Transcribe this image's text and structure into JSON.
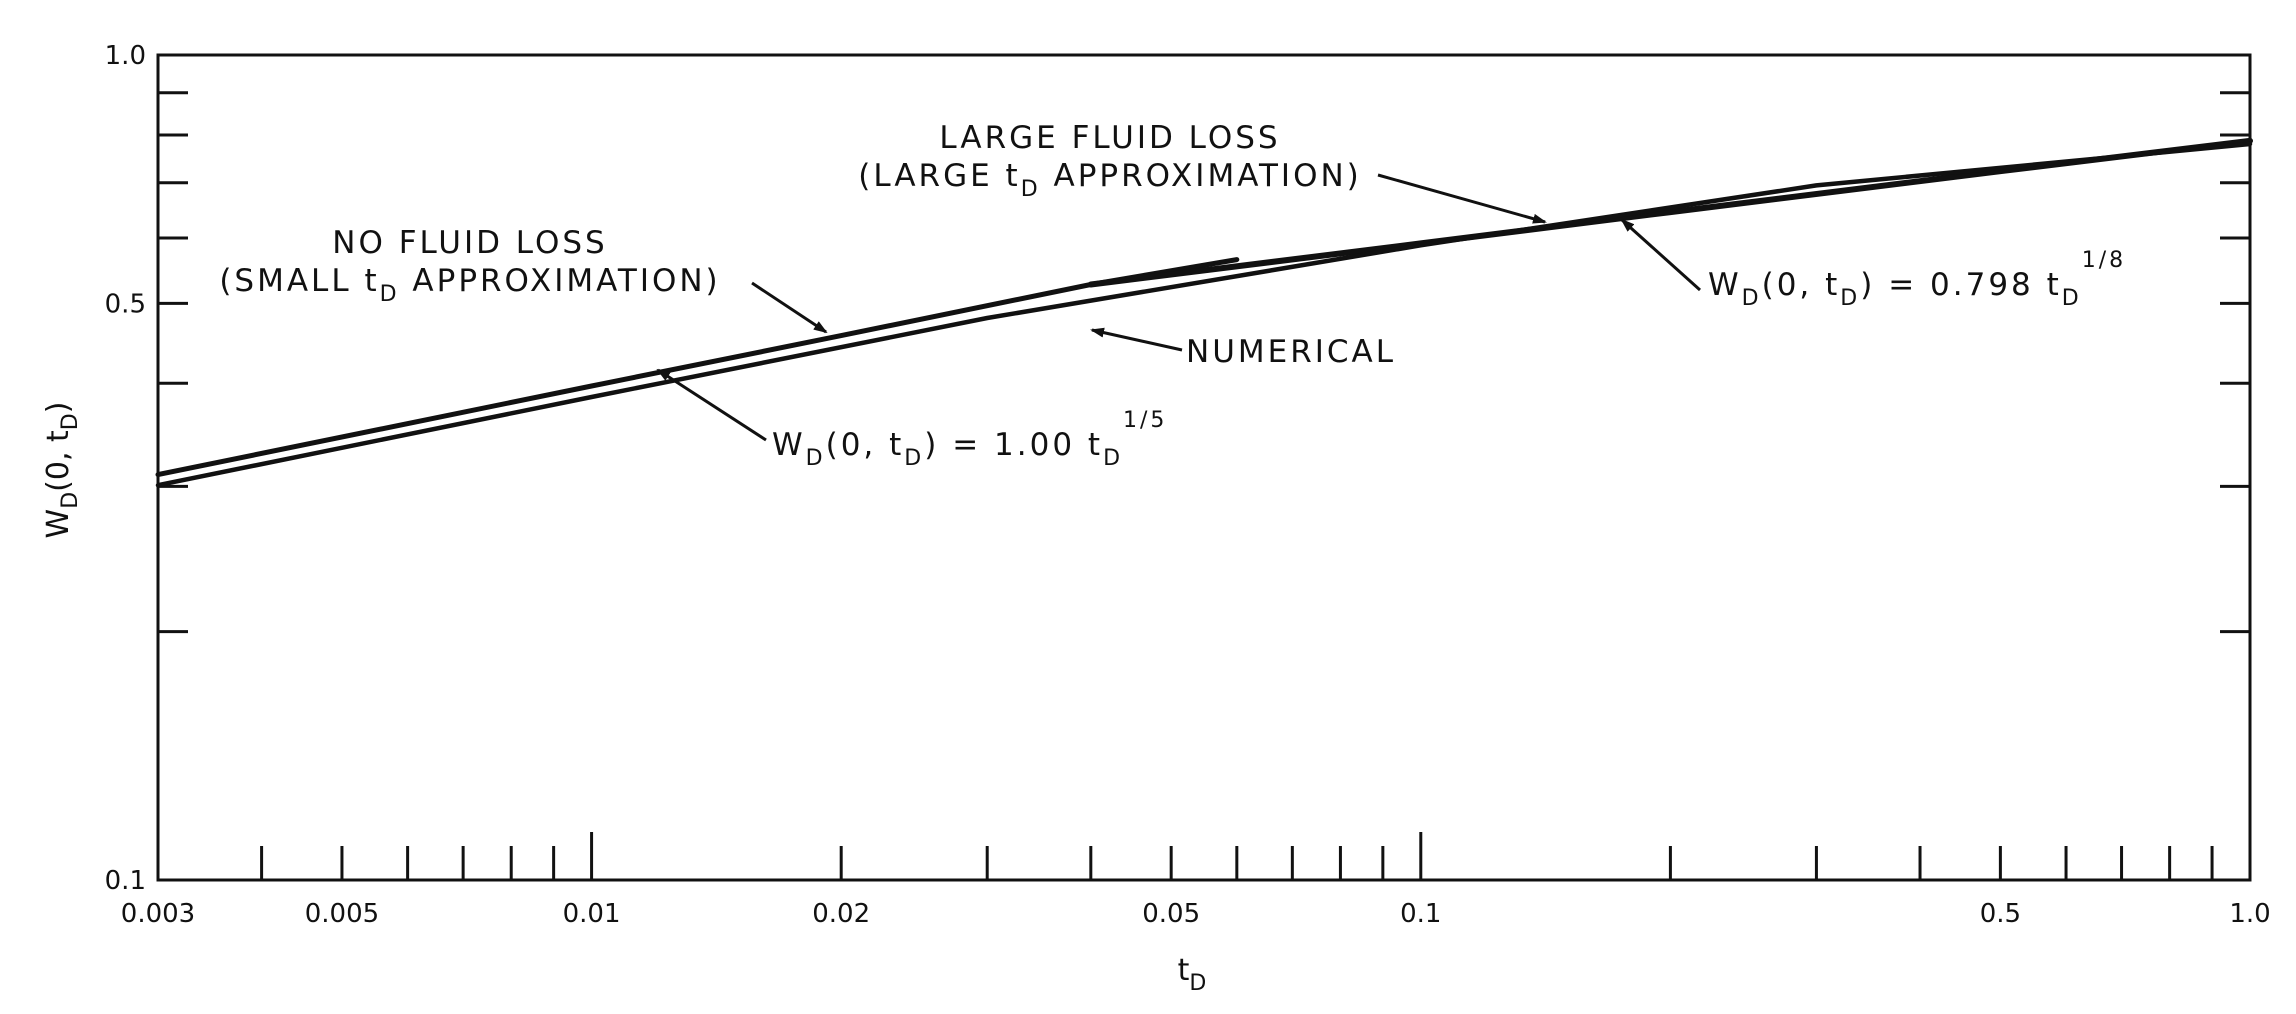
{
  "chart_data": {
    "type": "line",
    "x_scale": "log",
    "y_scale": "log",
    "xlim": [
      0.003,
      1.0
    ],
    "ylim": [
      0.1,
      1.0
    ],
    "grid": false,
    "xlabel": {
      "main": "t",
      "sub": "D"
    },
    "ylabel": {
      "main": "W",
      "sub": "D",
      "rest": "(0, t",
      "sub2": "D",
      "close": ")"
    },
    "x_tick_labels": [
      {
        "value": 0.003,
        "label": "0.003"
      },
      {
        "value": 0.005,
        "label": "0.005"
      },
      {
        "value": 0.01,
        "label": "0.01"
      },
      {
        "value": 0.02,
        "label": "0.02"
      },
      {
        "value": 0.05,
        "label": "0.05"
      },
      {
        "value": 0.1,
        "label": "0.1"
      },
      {
        "value": 0.5,
        "label": "0.5"
      },
      {
        "value": 1.0,
        "label": "1.0"
      }
    ],
    "y_tick_labels": [
      {
        "value": 1.0,
        "label": "1.0"
      },
      {
        "value": 0.5,
        "label": "0.5"
      },
      {
        "value": 0.1,
        "label": "0.1"
      }
    ],
    "x_minor_ticks": [
      0.004,
      0.005,
      0.006,
      0.007,
      0.008,
      0.009,
      0.01,
      0.02,
      0.03,
      0.04,
      0.05,
      0.06,
      0.07,
      0.08,
      0.09,
      0.1,
      0.2,
      0.3,
      0.4,
      0.5,
      0.6,
      0.7,
      0.8,
      0.9
    ],
    "y_minor_ticks": [
      0.2,
      0.3,
      0.4,
      0.6,
      0.7,
      0.8,
      0.9
    ],
    "series": [
      {
        "id": "small_td",
        "x": [
          0.003,
          0.01,
          0.02,
          0.04,
          0.06
        ],
        "y": [
          0.31,
          0.397,
          0.457,
          0.527,
          0.565
        ]
      },
      {
        "id": "large_td",
        "x": [
          0.04,
          0.1,
          0.2,
          0.5,
          1.0
        ],
        "y": [
          0.527,
          0.591,
          0.645,
          0.723,
          0.787
        ]
      },
      {
        "id": "numerical",
        "x": [
          0.003,
          0.01,
          0.03,
          0.1,
          0.3,
          1.0
        ],
        "y": [
          0.301,
          0.385,
          0.48,
          0.588,
          0.695,
          0.78
        ]
      }
    ],
    "annotations": {
      "large_fluid_loss": {
        "line1": "LARGE FLUID LOSS",
        "line2_pre": "(LARGE t",
        "line2_sub": "D",
        "line2_post": " APPROXIMATION)"
      },
      "no_fluid_loss": {
        "line1": "NO FLUID LOSS",
        "line2_pre": "(SMALL t",
        "line2_sub": "D",
        "line2_post": " APPROXIMATION)"
      },
      "numerical": "NUMERICAL",
      "eq_large": {
        "w": "W",
        "wsub": "D",
        "mid": "(0, t",
        "tsub": "D",
        "rhs": ") = 0.798 t",
        "rhs_sub": "D",
        "exp": "1/8"
      },
      "eq_small": {
        "w": "W",
        "wsub": "D",
        "mid": "(0, t",
        "tsub": "D",
        "rhs": ") = 1.00 t",
        "rhs_sub": "D",
        "exp": "1/5"
      }
    }
  }
}
